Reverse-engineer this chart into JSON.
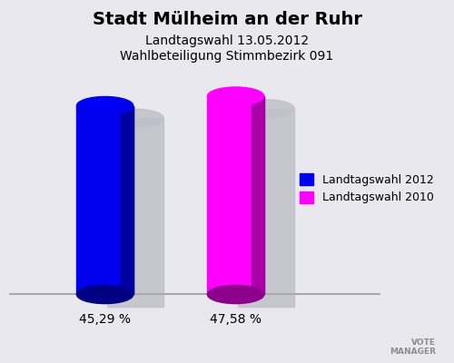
{
  "title": "Stadt Mülheim an der Ruhr",
  "subtitle1": "Landtagswahl 13.05.2012",
  "subtitle2": "Wahlbeteiligung Stimmbezirk 091",
  "values": [
    45.29,
    47.58
  ],
  "bar_colors": [
    "#0000ee",
    "#ff00ff"
  ],
  "bar_labels": [
    "45,29 %",
    "47,58 %"
  ],
  "legend_labels": [
    "Landtagswahl 2012",
    "Landtagswahl 2010"
  ],
  "background_color": "#e8e8ee",
  "ylim_max": 55,
  "bar_width": 0.13,
  "x_positions": [
    0.22,
    0.52
  ],
  "xlim": [
    0.0,
    1.0
  ],
  "title_fontsize": 14,
  "subtitle_fontsize": 10,
  "label_fontsize": 10,
  "legend_fontsize": 9,
  "shadow_color": "#c0c0c8",
  "ellipse_yratio": 0.04,
  "dark_factor": 0.55
}
